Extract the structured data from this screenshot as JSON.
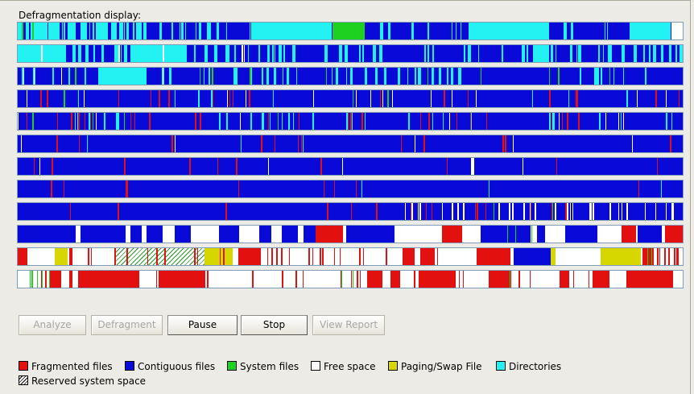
{
  "display": {
    "title": "Defragmentation display:"
  },
  "colors": {
    "fragmented": "#e31010",
    "contiguous": "#0a0ad8",
    "system": "#1fd11f",
    "free": "#ffffff",
    "paging": "#d6d600",
    "directories": "#22f2f2",
    "border": "#7f9db9"
  },
  "buttons": [
    {
      "label": "Analyze",
      "enabled": false
    },
    {
      "label": "Defragment",
      "enabled": false
    },
    {
      "label": "Pause",
      "enabled": true
    },
    {
      "label": "Stop",
      "enabled": true
    },
    {
      "label": "View Report",
      "enabled": false
    }
  ],
  "legend": [
    {
      "label": "Fragmented files",
      "color": "#e31010",
      "pattern": "solid"
    },
    {
      "label": "Contiguous files",
      "color": "#0a0ad8",
      "pattern": "solid"
    },
    {
      "label": "System files",
      "color": "#1fd11f",
      "pattern": "solid"
    },
    {
      "label": "Free space",
      "color": "#ffffff",
      "pattern": "solid"
    },
    {
      "label": "Paging/Swap File",
      "color": "#d6d600",
      "pattern": "solid"
    },
    {
      "label": "Directories",
      "color": "#22f2f2",
      "pattern": "solid"
    },
    {
      "label": "Reserved system space",
      "color": "#ffffff",
      "pattern": "hatch"
    }
  ]
}
